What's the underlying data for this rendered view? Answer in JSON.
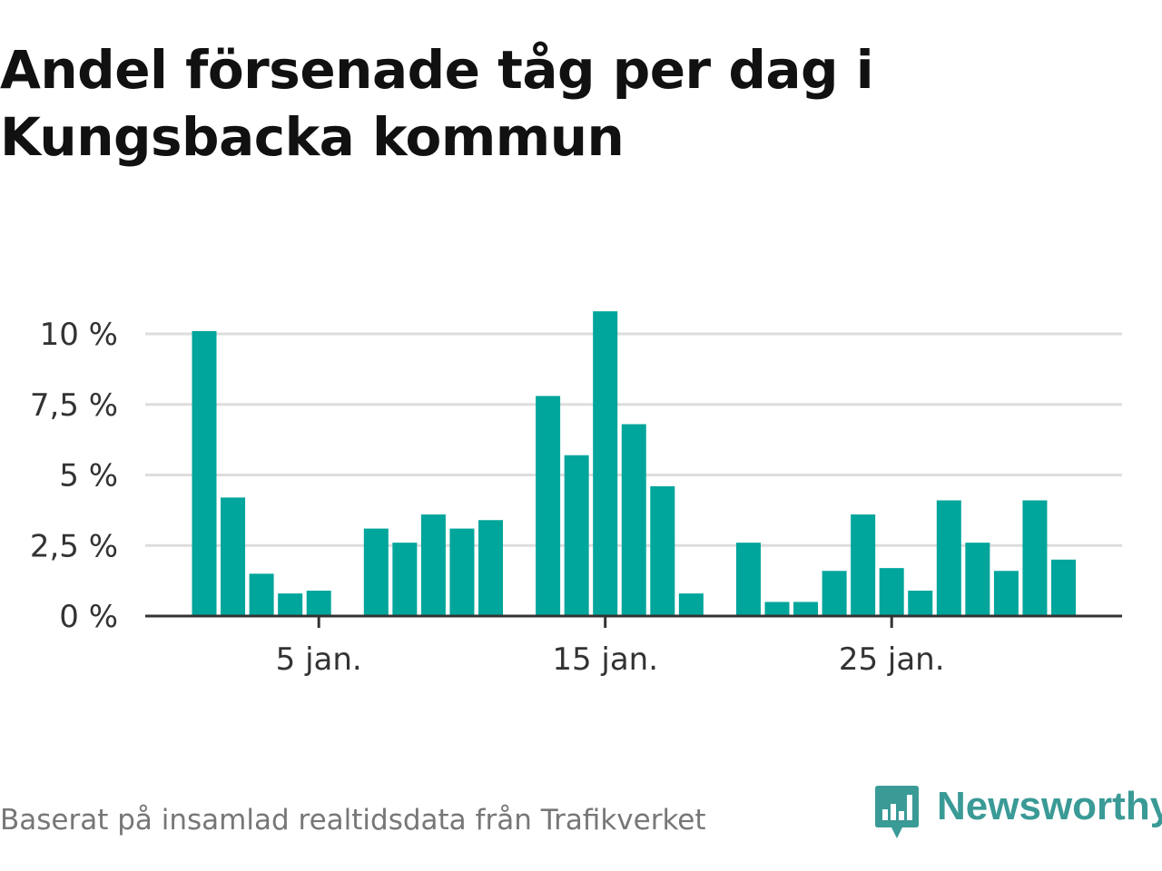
{
  "title": "Andel försenade tåg per dag i Kungsbacka kommun",
  "source": "Baserat på insamlad realtidsdata från Trafikverket",
  "logo": {
    "text": "Newsworthy",
    "icon": "newsworthy-chart-bubble-icon",
    "color": "#3a9a96"
  },
  "colors": {
    "bar": "#00a59b",
    "grid": "#dddddd",
    "axis": "#333333"
  },
  "chart_data": {
    "type": "bar",
    "title": "Andel försenade tåg per dag i Kungsbacka kommun",
    "xlabel": "",
    "ylabel": "",
    "x": [
      1,
      2,
      3,
      4,
      5,
      6,
      7,
      8,
      9,
      10,
      11,
      12,
      13,
      14,
      15,
      16,
      17,
      18,
      19,
      20,
      21,
      22,
      23,
      24,
      25,
      26,
      27,
      28,
      29,
      30,
      31
    ],
    "values": [
      10.1,
      4.2,
      1.5,
      0.8,
      0.9,
      null,
      3.1,
      2.6,
      3.6,
      3.1,
      3.4,
      null,
      7.8,
      5.7,
      10.8,
      6.8,
      4.6,
      0.8,
      null,
      2.6,
      0.5,
      0.5,
      1.6,
      3.6,
      1.7,
      0.9,
      4.1,
      2.6,
      1.6,
      4.1,
      2.0
    ],
    "ylim": [
      0,
      11
    ],
    "yticks": [
      0,
      2.5,
      5,
      7.5,
      10
    ],
    "ytick_labels": [
      "0 %",
      "2,5 %",
      "5 %",
      "7,5 %",
      "10 %"
    ],
    "xticks": [
      5,
      15,
      25
    ],
    "xtick_labels": [
      "5 jan.",
      "15 jan.",
      "25 jan."
    ],
    "grid": true
  }
}
